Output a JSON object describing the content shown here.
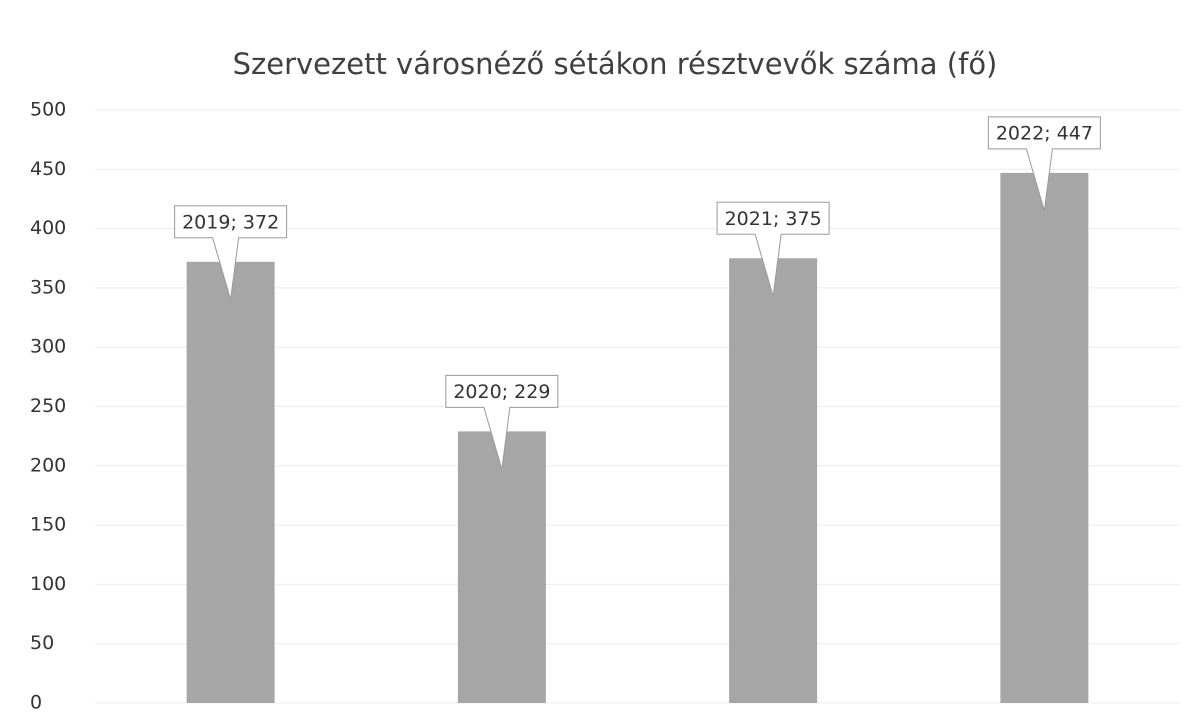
{
  "chart_data": {
    "type": "bar",
    "title": "Szervezett városnéző sétákon résztvevők száma (fő)",
    "values": [
      372,
      229,
      375,
      447
    ],
    "value_labels": [
      "2019; 372",
      "2020; 229",
      "2021; 375",
      "2022; 447"
    ],
    "color": "#a6a6a6",
    "ylim": [
      0,
      500
    ],
    "yticks": [
      0,
      50,
      100,
      150,
      200,
      250,
      300,
      350,
      400,
      450,
      500
    ],
    "grid": true
  }
}
